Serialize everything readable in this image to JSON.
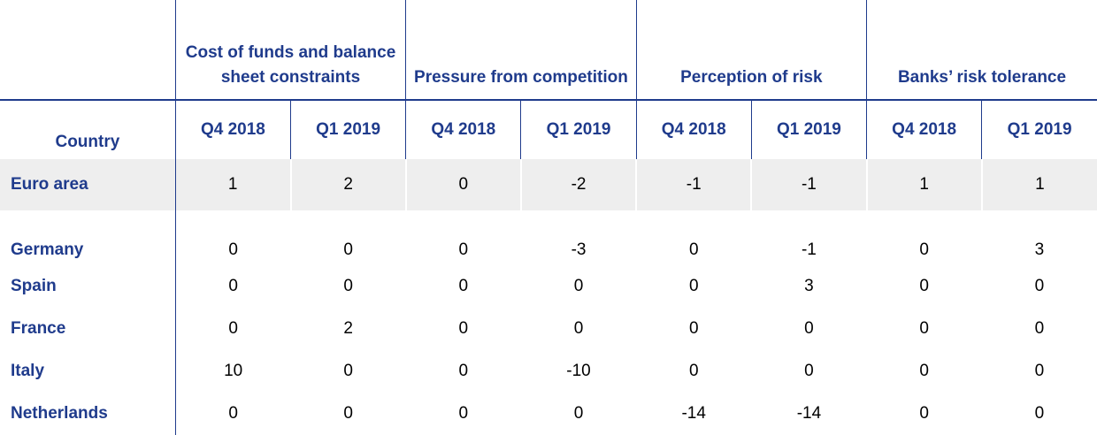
{
  "table": {
    "group_headers": [
      "Cost of funds and balance sheet constraints",
      "Pressure from competition",
      "Perception of risk",
      "Banks’ risk tolerance"
    ],
    "country_header": "Country",
    "quarter_headers": [
      "Q4 2018",
      "Q1 2019",
      "Q4 2018",
      "Q1 2019",
      "Q4 2018",
      "Q1 2019",
      "Q4 2018",
      "Q1 2019"
    ],
    "rows": [
      {
        "country": "Euro area",
        "values": [
          "1",
          "2",
          "0",
          "-2",
          "-1",
          "-1",
          "1",
          "1"
        ]
      },
      {
        "country": "Germany",
        "values": [
          "0",
          "0",
          "0",
          "-3",
          "0",
          "-1",
          "0",
          "3"
        ]
      },
      {
        "country": "Spain",
        "values": [
          "0",
          "0",
          "0",
          "0",
          "0",
          "3",
          "0",
          "0"
        ]
      },
      {
        "country": "France",
        "values": [
          "0",
          "2",
          "0",
          "0",
          "0",
          "0",
          "0",
          "0"
        ]
      },
      {
        "country": "Italy",
        "values": [
          "10",
          "0",
          "0",
          "-10",
          "0",
          "0",
          "0",
          "0"
        ]
      },
      {
        "country": "Netherlands",
        "values": [
          "0",
          "0",
          "0",
          "0",
          "-14",
          "-14",
          "0",
          "0"
        ]
      }
    ]
  },
  "colors": {
    "header_blue": "#1f3b8c",
    "highlight_row": "#eeeeee"
  }
}
